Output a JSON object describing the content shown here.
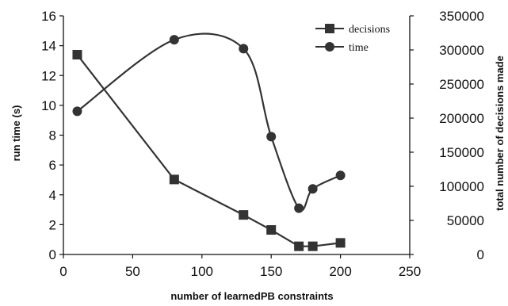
{
  "chart_data": {
    "type": "line",
    "xlabel": "number of learnedPB constraints",
    "ylabel_left": "run time (s)",
    "ylabel_right": "total number of decisions made",
    "xlim": [
      0,
      250
    ],
    "ylim_left": [
      0,
      16
    ],
    "ylim_right": [
      0,
      350000
    ],
    "x_ticks": [
      "0",
      "50",
      "100",
      "150",
      "200",
      "250"
    ],
    "y_left_ticks": [
      "0",
      "2",
      "4",
      "6",
      "8",
      "10",
      "12",
      "14",
      "16"
    ],
    "y_right_ticks": [
      "0",
      "50000",
      "100000",
      "150000",
      "200000",
      "250000",
      "300000",
      "350000"
    ],
    "grid": false,
    "legend_position": "top-right",
    "series": [
      {
        "name": "decisions",
        "axis": "right",
        "marker": "square",
        "smooth": false,
        "color": "#333333",
        "x": [
          10,
          80,
          130,
          150,
          170,
          180,
          200
        ],
        "y": [
          293000,
          110000,
          58000,
          36000,
          12000,
          12000,
          17000
        ]
      },
      {
        "name": "time",
        "axis": "left",
        "marker": "circle",
        "smooth": true,
        "color": "#333333",
        "x": [
          10,
          80,
          130,
          150,
          170,
          180,
          200
        ],
        "y": [
          9.6,
          14.4,
          13.8,
          7.9,
          3.1,
          4.4,
          5.3
        ]
      }
    ]
  }
}
